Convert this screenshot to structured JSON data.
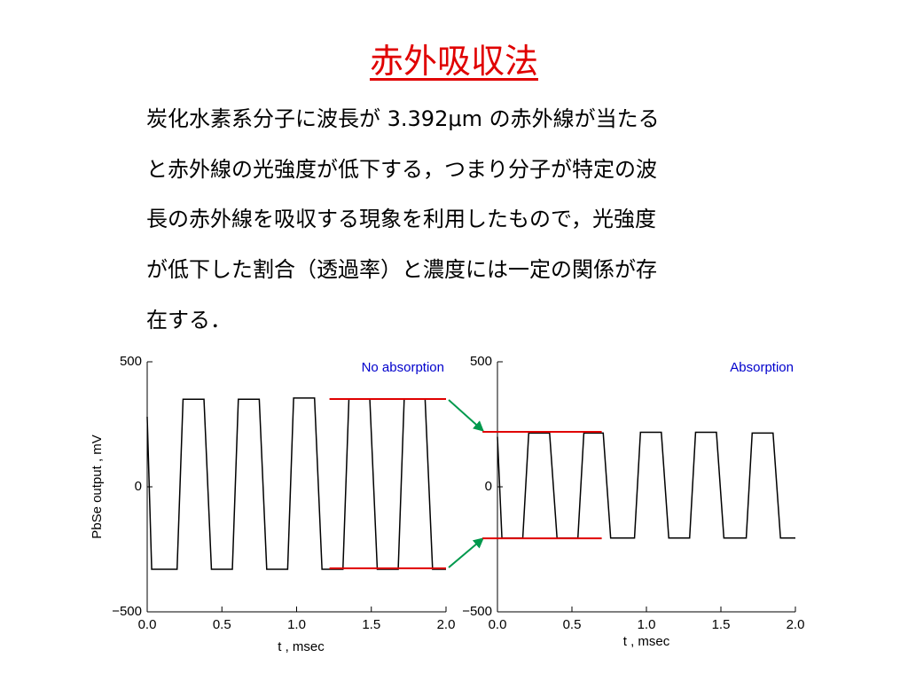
{
  "title": "赤外吸収法",
  "body_lines": [
    "炭化水素系分子に波長が 3.392μm の赤外線が当たる",
    "と赤外線の光強度が低下する，つまり分子が特定の波",
    "長の赤外線を吸収する現象を利用したもので，光強度",
    "が低下した割合（透過率）と濃度には一定の関係が存",
    "在する．"
  ],
  "chart_data": [
    {
      "type": "line",
      "annotation": "No absorption",
      "annotation_color": "#0000cc",
      "xlabel": "t , msec",
      "ylabel": "PbSe output , mV",
      "xlim": [
        0,
        2
      ],
      "xticks": [
        {
          "value": 0,
          "label": "0.0"
        },
        0.5,
        {
          "value": 1,
          "label": "1.0"
        },
        1.5,
        {
          "value": 2,
          "label": "2.0"
        }
      ],
      "ylim": [
        -500,
        500
      ],
      "yticks": [
        {
          "value": -500,
          "label": "−500"
        },
        0,
        500
      ],
      "color": "#000000",
      "x": [
        0,
        0.03,
        0.2,
        0.24,
        0.38,
        0.43,
        0.57,
        0.61,
        0.75,
        0.8,
        0.94,
        0.98,
        1.12,
        1.17,
        1.31,
        1.35,
        1.49,
        1.54,
        1.68,
        1.72,
        1.86,
        1.91,
        2.0
      ],
      "values": [
        280,
        -330,
        -330,
        350,
        350,
        -330,
        -330,
        350,
        350,
        -330,
        -330,
        355,
        355,
        -330,
        -330,
        350,
        350,
        -330,
        -330,
        350,
        350,
        -330,
        -330
      ],
      "hlines": [
        {
          "value": 351,
          "xlim": [
            1.22,
            2.0
          ],
          "color": "#e00000"
        },
        {
          "value": -326,
          "xlim": [
            1.22,
            2.0
          ],
          "color": "#e00000"
        }
      ]
    },
    {
      "type": "line",
      "annotation": "Absorption",
      "annotation_color": "#0000cc",
      "xlabel": "t , msec",
      "xlim": [
        0,
        2
      ],
      "xticks": [
        {
          "value": 0,
          "label": "0.0"
        },
        0.5,
        {
          "value": 1,
          "label": "1.0"
        },
        1.5,
        {
          "value": 2,
          "label": "2.0"
        }
      ],
      "ylim": [
        -500,
        500
      ],
      "yticks": [
        {
          "value": -500,
          "label": "−500"
        },
        0,
        500
      ],
      "color": "#000000",
      "x": [
        0,
        0.03,
        0.17,
        0.21,
        0.35,
        0.4,
        0.54,
        0.58,
        0.71,
        0.76,
        0.92,
        0.96,
        1.1,
        1.15,
        1.29,
        1.33,
        1.47,
        1.52,
        1.67,
        1.71,
        1.85,
        1.9,
        2.0
      ],
      "values": [
        200,
        -205,
        -205,
        215,
        215,
        -205,
        -205,
        215,
        215,
        -205,
        -205,
        218,
        218,
        -205,
        -205,
        218,
        218,
        -205,
        -205,
        215,
        215,
        -205,
        -205
      ],
      "hlines": [
        {
          "value": 220,
          "xlim": [
            -0.1,
            0.7
          ],
          "color": "#e00000"
        },
        {
          "value": -206,
          "xlim": [
            -0.1,
            0.7
          ],
          "color": "#e00000"
        }
      ]
    }
  ]
}
